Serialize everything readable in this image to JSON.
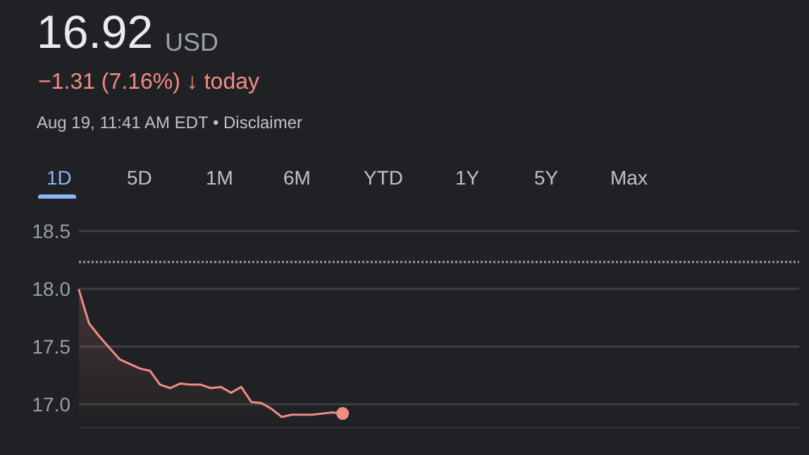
{
  "chart_data": {
    "type": "area",
    "title": "16.92",
    "subtitle": "USD",
    "annotations": [
      "−1.31 (7.16%) ↓ today",
      "Aug 19, 11:41 AM EDT • Disclaimer",
      "1D",
      "5D",
      "1M",
      "6M",
      "YTD",
      "1Y",
      "5Y",
      "Max"
    ],
    "categories": [
      null,
      null,
      null,
      null,
      null,
      null,
      null,
      null,
      null,
      null,
      null,
      null,
      null,
      null,
      null,
      null,
      null,
      null,
      null,
      null,
      null,
      null,
      null,
      null,
      null,
      null,
      null,
      null,
      null,
      null,
      null,
      null,
      null,
      null,
      null,
      null,
      null,
      null,
      null,
      null,
      null,
      null,
      null,
      null,
      null,
      null,
      null,
      null,
      null,
      null,
      null,
      null,
      null,
      null,
      null,
      null,
      null,
      null,
      null,
      null,
      null,
      null,
      null,
      null,
      null,
      null,
      null,
      null,
      null,
      null,
      null,
      null
    ],
    "series": [
      {
        "color": "#f28b82",
        "values": [
          17.99,
          17.7,
          17.59,
          17.49,
          17.39,
          17.35,
          17.31,
          17.29,
          17.17,
          17.14,
          17.18,
          17.17,
          17.17,
          17.14,
          17.15,
          17.1,
          17.15,
          17.02,
          17.01,
          16.96,
          16.89,
          16.91,
          16.91,
          16.91,
          16.92,
          16.93,
          16.92,
          null,
          null,
          null,
          null,
          null,
          null,
          null,
          null,
          null,
          null,
          null,
          null,
          null,
          null,
          null,
          null,
          null,
          null,
          null,
          null,
          null,
          null,
          null,
          null,
          null,
          null,
          null,
          null,
          null,
          null,
          null,
          null,
          null,
          null,
          null,
          null,
          null,
          null,
          null,
          null,
          null,
          null,
          null,
          null,
          null
        ]
      }
    ],
    "ylim": [
      16.8,
      18.5
    ],
    "yticks": [
      {
        "value": 17,
        "label": "17.0"
      },
      17.5,
      {
        "value": 18,
        "label": "18.0"
      },
      18.5
    ],
    "grid": "y",
    "marker": "none",
    "line_style": "solid",
    "ref_lines": [
      {
        "axis": "y",
        "value": 18.23,
        "label": null,
        "color": "#9aa0a6",
        "line_style": "dotted"
      }
    ]
  }
}
